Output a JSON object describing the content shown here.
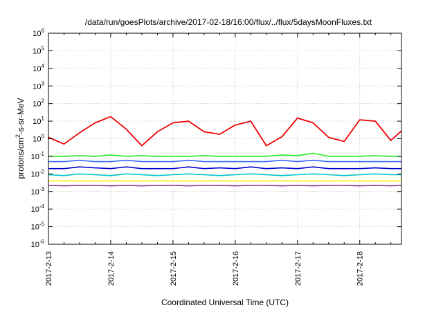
{
  "chart_data": {
    "type": "line",
    "title": "/data/run/goesPlots/archive/2017-02-18/16:00/flux/../flux/5daysMoonFluxes.txt",
    "xlabel": "Coordinated Universal Time (UTC)",
    "ylabel": {
      "base": "protons/cm",
      "sup": "2",
      "rest": "-s-sr-MeV"
    },
    "x_ticks": [
      "2017-2-13",
      "2017-2-14",
      "2017-2-15",
      "2017-2-16",
      "2017-2-17",
      "2017-2-18"
    ],
    "x_range": [
      "2017-02-13 00:00",
      "2017-02-18 16:00"
    ],
    "yscale": "log",
    "ylim": [
      1e-06,
      1000000.0
    ],
    "y_ticks": [
      {
        "base": "10",
        "exp": "6"
      },
      {
        "base": "10",
        "exp": "5"
      },
      {
        "base": "10",
        "exp": "4"
      },
      {
        "base": "10",
        "exp": "3"
      },
      {
        "base": "10",
        "exp": "2"
      },
      {
        "base": "10",
        "exp": "1"
      },
      {
        "base": "10",
        "exp": "0"
      },
      {
        "base": "10",
        "exp": "-1"
      },
      {
        "base": "10",
        "exp": "-2"
      },
      {
        "base": "10",
        "exp": "-3"
      },
      {
        "base": "10",
        "exp": "-4"
      },
      {
        "base": "10",
        "exp": "-5"
      },
      {
        "base": "10",
        "exp": "-6"
      }
    ],
    "grid": true,
    "legend": "none",
    "x": [
      0,
      0.25,
      0.5,
      0.75,
      1,
      1.25,
      1.5,
      1.75,
      2,
      2.25,
      2.5,
      2.75,
      3,
      3.25,
      3.5,
      3.75,
      4,
      4.25,
      4.5,
      4.75,
      5,
      5.25,
      5.5,
      5.67
    ],
    "series": [
      {
        "color": "#ee0000",
        "values": [
          1.2,
          0.5,
          2.2,
          8,
          18,
          3.5,
          0.4,
          2.5,
          8,
          10,
          2.5,
          1.8,
          6,
          10,
          0.4,
          1.3,
          15,
          8,
          1.2,
          0.7,
          12,
          10,
          0.8,
          2.8
        ]
      },
      {
        "color": "#22ee22",
        "values": [
          0.1,
          0.1,
          0.11,
          0.1,
          0.12,
          0.1,
          0.11,
          0.1,
          0.1,
          0.1,
          0.11,
          0.1,
          0.1,
          0.1,
          0.1,
          0.12,
          0.11,
          0.15,
          0.1,
          0.1,
          0.1,
          0.11,
          0.1,
          0.1
        ]
      },
      {
        "color": "#3366ff",
        "values": [
          0.05,
          0.05,
          0.06,
          0.05,
          0.05,
          0.06,
          0.05,
          0.05,
          0.05,
          0.06,
          0.05,
          0.05,
          0.05,
          0.05,
          0.05,
          0.06,
          0.05,
          0.06,
          0.05,
          0.05,
          0.05,
          0.05,
          0.05,
          0.05
        ]
      },
      {
        "color": "#0000cc",
        "values": [
          0.02,
          0.02,
          0.025,
          0.022,
          0.02,
          0.025,
          0.02,
          0.02,
          0.02,
          0.025,
          0.02,
          0.022,
          0.02,
          0.025,
          0.02,
          0.022,
          0.02,
          0.025,
          0.02,
          0.02,
          0.02,
          0.022,
          0.02,
          0.02
        ]
      },
      {
        "color": "#00c8c8",
        "values": [
          0.009,
          0.008,
          0.01,
          0.009,
          0.008,
          0.01,
          0.009,
          0.008,
          0.009,
          0.01,
          0.009,
          0.008,
          0.009,
          0.01,
          0.009,
          0.008,
          0.009,
          0.01,
          0.009,
          0.008,
          0.009,
          0.01,
          0.009,
          0.009
        ]
      },
      {
        "color": "#ffee00",
        "values": [
          0.004,
          0.004,
          0.004,
          0.004,
          0.004,
          0.004,
          0.004,
          0.004,
          0.004,
          0.004,
          0.004,
          0.004,
          0.004,
          0.004,
          0.004,
          0.004,
          0.004,
          0.004,
          0.004,
          0.004,
          0.004,
          0.004,
          0.004,
          0.004
        ]
      },
      {
        "color": "#8b2f8b",
        "values": [
          0.0022,
          0.0021,
          0.0022,
          0.0022,
          0.0021,
          0.0022,
          0.0021,
          0.0022,
          0.0022,
          0.0021,
          0.0022,
          0.0022,
          0.0021,
          0.0022,
          0.0022,
          0.0021,
          0.0022,
          0.0021,
          0.0022,
          0.0022,
          0.0021,
          0.0022,
          0.0021,
          0.0022
        ]
      }
    ]
  }
}
